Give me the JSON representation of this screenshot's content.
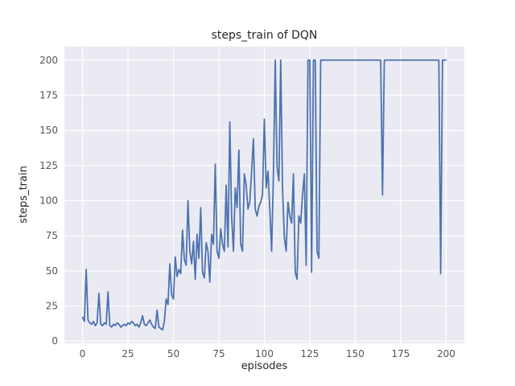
{
  "chart_data": {
    "type": "line",
    "title": "steps_train of DQN",
    "xlabel": "episodes",
    "ylabel": "steps_train",
    "x_ticks": [
      0,
      25,
      50,
      75,
      100,
      125,
      150,
      175,
      200
    ],
    "y_ticks": [
      0,
      25,
      50,
      75,
      100,
      125,
      150,
      175,
      200
    ],
    "xlim": [
      -10,
      210
    ],
    "ylim": [
      -1.6,
      209.6
    ],
    "grid": true,
    "legend_visible": false,
    "colors": {
      "line": "#4c72b0",
      "plot_bg": "#eaeaf2",
      "grid": "#ffffff",
      "title_text": "#262626",
      "tick_text": "#555555",
      "figure_bg": "#ffffff"
    },
    "series": [
      {
        "name": "steps_train",
        "x_start": 0,
        "x_step": 1,
        "values": [
          17,
          14,
          51,
          15,
          13,
          12,
          14,
          11,
          13,
          34,
          12,
          11,
          13,
          12,
          35,
          11,
          10,
          12,
          11,
          13,
          12,
          10,
          11,
          12,
          11,
          13,
          12,
          14,
          13,
          11,
          12,
          10,
          13,
          18,
          12,
          11,
          13,
          15,
          12,
          10,
          9,
          22,
          10,
          9,
          8,
          14,
          30,
          26,
          55,
          33,
          30,
          60,
          46,
          51,
          48,
          79,
          58,
          54,
          100,
          64,
          55,
          71,
          44,
          76,
          59,
          95,
          49,
          45,
          70,
          64,
          42,
          76,
          69,
          126,
          64,
          59,
          80,
          69,
          64,
          111,
          67,
          156,
          89,
          64,
          109,
          95,
          136,
          69,
          64,
          119,
          111,
          94,
          99,
          121,
          144,
          94,
          89,
          96,
          99,
          104,
          158,
          109,
          121,
          94,
          64,
          119,
          200,
          124,
          114,
          200,
          109,
          74,
          64,
          99,
          89,
          84,
          119,
          49,
          44,
          89,
          84,
          104,
          119,
          54,
          200,
          200,
          49,
          200,
          200,
          64,
          59,
          200,
          200,
          200,
          200,
          200,
          200,
          200,
          200,
          200,
          200,
          200,
          200,
          200,
          200,
          200,
          200,
          200,
          200,
          200,
          200,
          200,
          200,
          200,
          200,
          200,
          200,
          200,
          200,
          200,
          200,
          200,
          200,
          200,
          200,
          104,
          200,
          200,
          200,
          200,
          200,
          200,
          200,
          200,
          200,
          200,
          200,
          200,
          200,
          200,
          200,
          200,
          200,
          200,
          200,
          200,
          200,
          200,
          200,
          200,
          200,
          200,
          200,
          200,
          200,
          200,
          200,
          48,
          200,
          200,
          200
        ]
      }
    ]
  }
}
